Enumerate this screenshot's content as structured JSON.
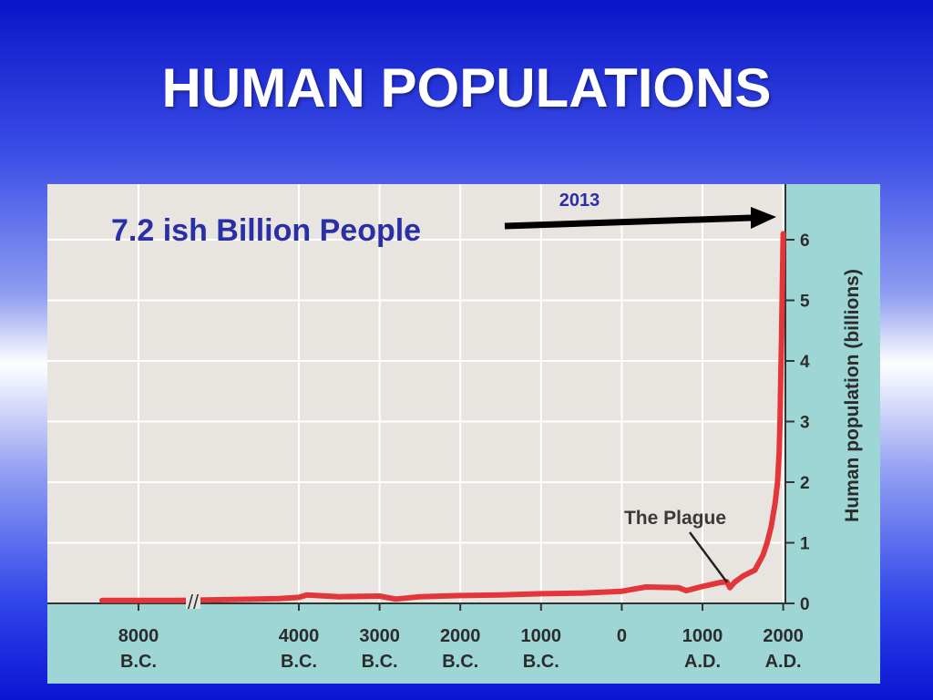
{
  "slide": {
    "title": "HUMAN POPULATIONS",
    "annotation": "7.2 ish Billion People",
    "arrow_label": "2013"
  },
  "colors": {
    "plot_bg": "#e8e4e0",
    "axis_bg": "#9ed6d6",
    "line": "#e2363a",
    "annotation_text": "#2b2fa6",
    "arrow": "#000000"
  },
  "chart_data": {
    "type": "line",
    "title": "",
    "xlabel": "",
    "ylabel": "Human population (billions)",
    "ylim": [
      0,
      6
    ],
    "y_ticks": [
      "0",
      "1",
      "2",
      "3",
      "4",
      "5",
      "6"
    ],
    "x_ticks": [
      {
        "year": -8000,
        "line1": "8000",
        "line2": "B.C."
      },
      {
        "year": -4000,
        "line1": "4000",
        "line2": "B.C."
      },
      {
        "year": -3000,
        "line1": "3000",
        "line2": "B.C."
      },
      {
        "year": -2000,
        "line1": "2000",
        "line2": "B.C."
      },
      {
        "year": -1000,
        "line1": "1000",
        "line2": "B.C."
      },
      {
        "year": 0,
        "line1": "0",
        "line2": ""
      },
      {
        "year": 1000,
        "line1": "1000",
        "line2": "A.D."
      },
      {
        "year": 2000,
        "line1": "2000",
        "line2": "A.D."
      }
    ],
    "axis_break": "//",
    "annotations": [
      {
        "text": "The Plague",
        "year": 1350,
        "value": 0.35
      }
    ],
    "series": [
      {
        "x": [
          -9000,
          -8000,
          -7000,
          -6000,
          -5000,
          -4500,
          -4200,
          -4000,
          -3900,
          -3500,
          -3000,
          -2800,
          -2500,
          -2000,
          -1500,
          -1000,
          -500,
          0,
          300,
          700,
          800,
          1000,
          1200,
          1300,
          1340,
          1400,
          1500,
          1650,
          1750,
          1800,
          1850,
          1900,
          1930,
          1950,
          1960,
          1970,
          1980,
          1990,
          2000
        ],
        "y": [
          0.05,
          0.05,
          0.05,
          0.06,
          0.07,
          0.08,
          0.09,
          0.1,
          0.14,
          0.11,
          0.12,
          0.07,
          0.11,
          0.13,
          0.14,
          0.16,
          0.17,
          0.2,
          0.27,
          0.26,
          0.21,
          0.28,
          0.34,
          0.36,
          0.26,
          0.35,
          0.45,
          0.55,
          0.8,
          1.0,
          1.26,
          1.65,
          2.0,
          2.5,
          3.0,
          3.7,
          4.4,
          5.3,
          6.1
        ]
      }
    ]
  }
}
